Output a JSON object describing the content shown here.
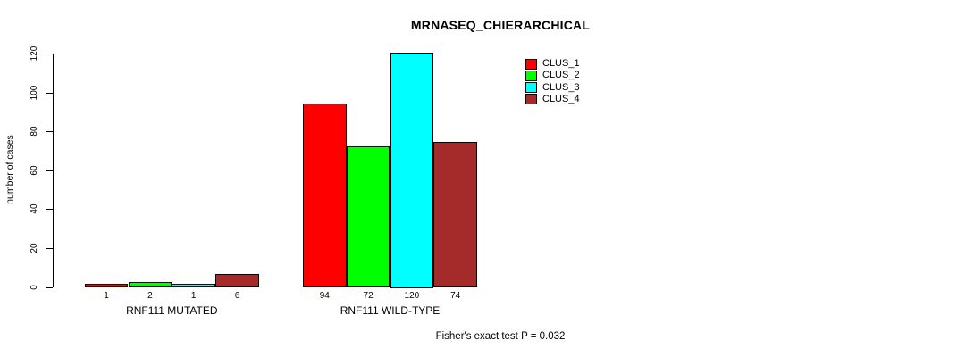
{
  "chart_data": {
    "type": "bar",
    "title": "MRNASEQ_CHIERARCHICAL",
    "ylabel": "number of cases",
    "xlabel": "",
    "ylim": [
      0,
      120
    ],
    "yticks": [
      0,
      20,
      40,
      60,
      80,
      100,
      120
    ],
    "grid": false,
    "legend_position": "top-right",
    "categories": [
      "RNF111 MUTATED",
      "RNF111 WILD-TYPE"
    ],
    "series": [
      {
        "name": "CLUS_1",
        "color": "#FF0000",
        "values": [
          1,
          94
        ]
      },
      {
        "name": "CLUS_2",
        "color": "#00FF00",
        "values": [
          2,
          72
        ]
      },
      {
        "name": "CLUS_3",
        "color": "#00FFFF",
        "values": [
          1,
          120
        ]
      },
      {
        "name": "CLUS_4",
        "color": "#A52A2A",
        "values": [
          6,
          74
        ]
      }
    ],
    "bar_value_labels": [
      [
        "1",
        "2",
        "1",
        "6"
      ],
      [
        "94",
        "72",
        "120",
        "74"
      ]
    ],
    "annotation": "Fisher's exact test P = 0.032"
  }
}
